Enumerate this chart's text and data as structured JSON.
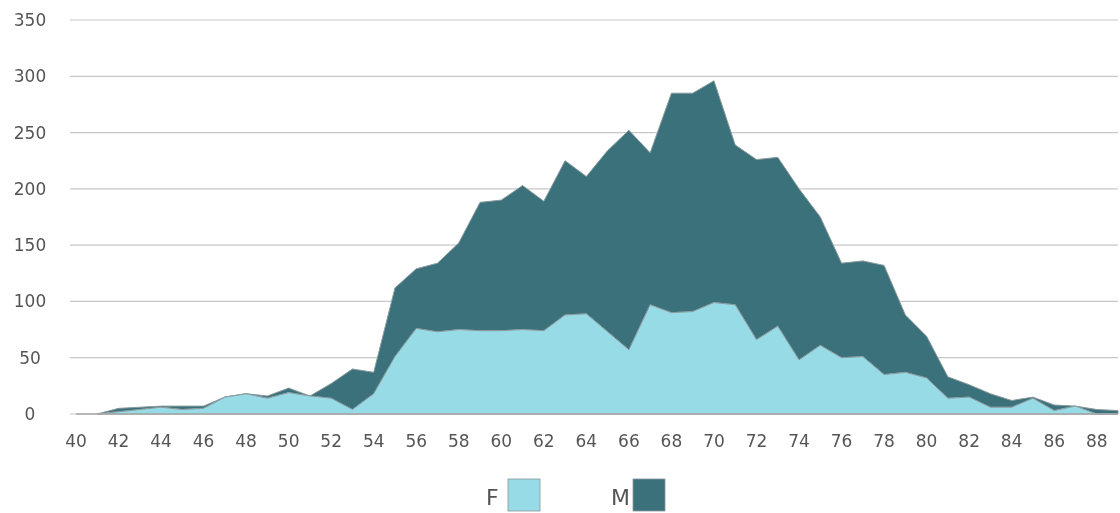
{
  "chart_data": {
    "type": "area",
    "stacked": true,
    "x": [
      41,
      42,
      43,
      44,
      45,
      46,
      47,
      48,
      49,
      50,
      51,
      52,
      53,
      54,
      55,
      56,
      57,
      58,
      59,
      60,
      61,
      62,
      63,
      64,
      65,
      66,
      67,
      68,
      69,
      70,
      71,
      72,
      73,
      74,
      75,
      76,
      77,
      78,
      79,
      80,
      81,
      82,
      83,
      84,
      85,
      86,
      87,
      88,
      89
    ],
    "series": [
      {
        "name": "F",
        "color": "#97dbe6",
        "values": [
          0,
          2,
          4,
          6,
          4,
          5,
          15,
          18,
          14,
          19,
          16,
          14,
          4,
          18,
          51,
          76,
          73,
          75,
          74,
          74,
          75,
          74,
          88,
          89,
          73,
          57,
          97,
          90,
          91,
          99,
          97,
          66,
          78,
          48,
          61,
          50,
          51,
          35,
          37,
          32,
          14,
          15,
          6,
          6,
          14,
          3,
          7,
          0,
          0
        ]
      },
      {
        "name": "M",
        "color": "#3a717a",
        "values": [
          0,
          3,
          2,
          1,
          3,
          2,
          0,
          0,
          2,
          4,
          0,
          13,
          36,
          19,
          61,
          53,
          61,
          77,
          114,
          116,
          128,
          115,
          137,
          122,
          161,
          195,
          135,
          195,
          194,
          197,
          142,
          160,
          150,
          152,
          114,
          84,
          85,
          97,
          51,
          37,
          19,
          11,
          12,
          6,
          1,
          5,
          0,
          4,
          3
        ]
      }
    ],
    "xlim": [
      40,
      89
    ],
    "xticks": [
      40,
      42,
      44,
      46,
      48,
      50,
      52,
      54,
      56,
      58,
      60,
      62,
      64,
      66,
      68,
      70,
      72,
      74,
      76,
      78,
      80,
      82,
      84,
      86,
      88
    ],
    "ylim": [
      0,
      350
    ],
    "yticks": [
      0,
      50,
      100,
      150,
      200,
      250,
      300,
      350
    ],
    "grid": "y",
    "legend": "bottom"
  }
}
